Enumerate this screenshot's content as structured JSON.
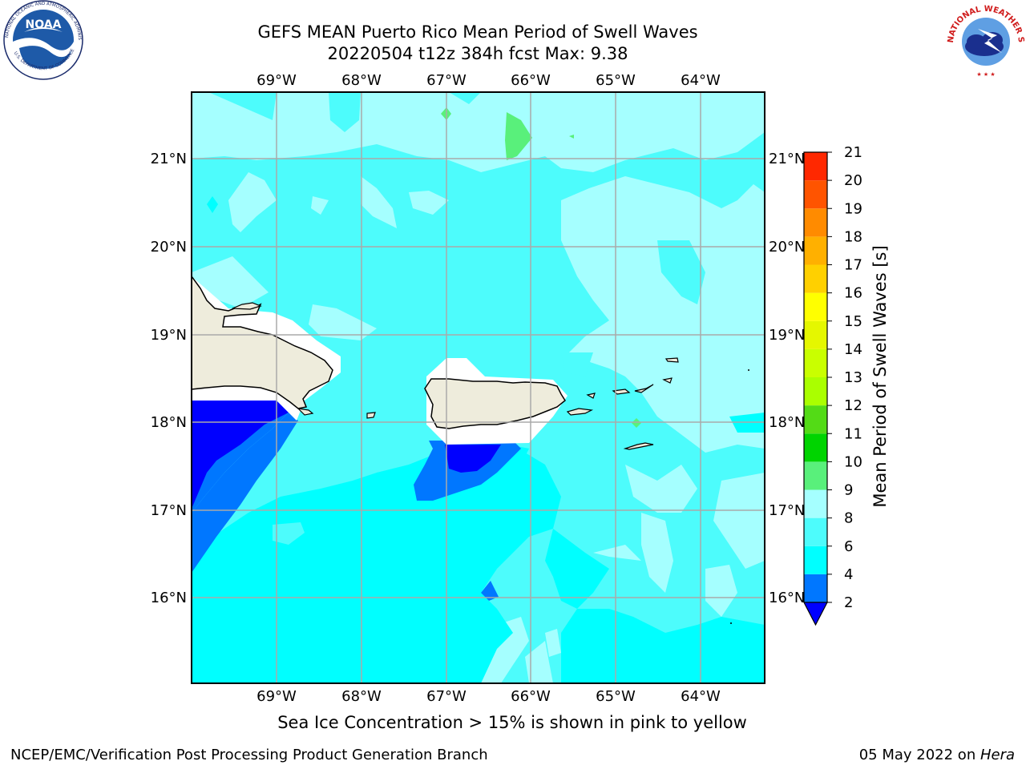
{
  "header": {
    "title": "GEFS MEAN Puerto Rico Mean Period of Swell Waves",
    "subtitle": "20220504 t12z 384h fcst   Max: 9.38"
  },
  "logos": {
    "noaa": "NOAA",
    "nws_text": "NATIONAL WEATHER SERVICE"
  },
  "map": {
    "lon_labels": [
      "69°W",
      "68°W",
      "67°W",
      "66°W",
      "65°W",
      "64°W"
    ],
    "lat_labels": [
      "21°N",
      "20°N",
      "19°N",
      "18°N",
      "17°N",
      "16°N"
    ],
    "lon_range": [
      -70.0,
      -63.25
    ],
    "lat_range": [
      15.0,
      21.75
    ],
    "gridlines": true,
    "land_color": "#eeecdc",
    "coast_color": "#000000",
    "regions": [
      "Hispaniola",
      "Puerto Rico",
      "Virgin Islands",
      "St. Croix"
    ]
  },
  "colorbar": {
    "label": "Mean Period of Swell Waves [s]",
    "ticks": [
      "21",
      "20",
      "19",
      "18",
      "17",
      "16",
      "15",
      "14",
      "13",
      "12",
      "11",
      "10",
      "9",
      "8",
      "6",
      "4",
      "2"
    ],
    "levels": [
      2,
      4,
      6,
      8,
      9,
      10,
      11,
      12,
      13,
      14,
      15,
      16,
      17,
      18,
      19,
      20,
      21
    ],
    "colors": [
      "#0000ff",
      "#0077ff",
      "#00ffff",
      "#4dfcfc",
      "#a5ffff",
      "#59f07b",
      "#00d400",
      "#53db16",
      "#aaff00",
      "#c9ff00",
      "#e5f700",
      "#ffff00",
      "#ffd000",
      "#ffb000",
      "#ff8b00",
      "#ff5400",
      "#ff2800",
      "#ff0000"
    ],
    "extend": "min"
  },
  "caption": "Sea Ice Concentration > 15% is shown in pink to yellow",
  "footer": {
    "left": "NCEP/EMC/Verification Post Processing Product Generation Branch",
    "date": "05 May 2022 on ",
    "machine": "Hera"
  }
}
